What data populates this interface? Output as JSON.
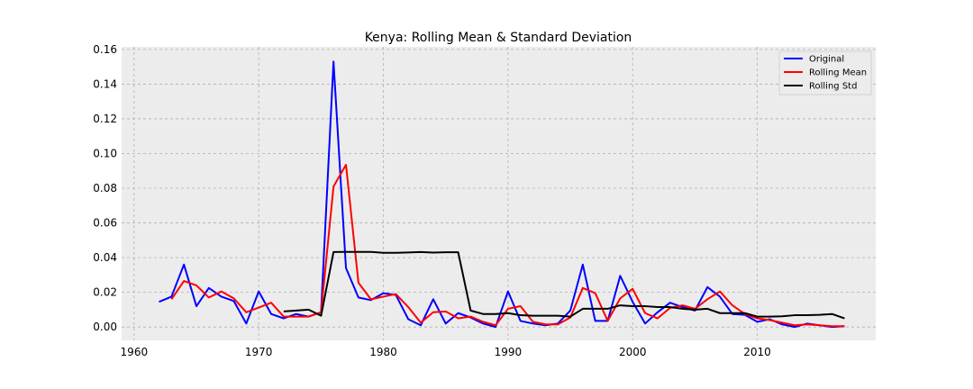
{
  "chart_data": {
    "type": "line",
    "title": "Kenya: Rolling Mean & Standard Deviation",
    "xlabel": "",
    "ylabel": "",
    "xlim": [
      1959,
      2019.5
    ],
    "ylim": [
      -0.0077,
      0.1615
    ],
    "xticks": [
      1960,
      1970,
      1980,
      1990,
      2000,
      2010
    ],
    "yticks": [
      0.0,
      0.02,
      0.04,
      0.06,
      0.08,
      0.1,
      0.12,
      0.14,
      0.16
    ],
    "ytick_labels": [
      "0.00",
      "0.02",
      "0.04",
      "0.06",
      "0.08",
      "0.10",
      "0.12",
      "0.14",
      "0.16"
    ],
    "grid": true,
    "legend_position": "top-right",
    "series": [
      {
        "name": "Original",
        "color": "#0000ff",
        "x": [
          1962,
          1963,
          1964,
          1965,
          1966,
          1967,
          1968,
          1969,
          1970,
          1971,
          1972,
          1973,
          1974,
          1975,
          1976,
          1977,
          1978,
          1979,
          1980,
          1981,
          1982,
          1983,
          1984,
          1985,
          1986,
          1987,
          1988,
          1989,
          1990,
          1991,
          1992,
          1993,
          1994,
          1995,
          1996,
          1997,
          1998,
          1999,
          2000,
          2001,
          2002,
          2003,
          2004,
          2005,
          2006,
          2007,
          2008,
          2009,
          2010,
          2011,
          2012,
          2013,
          2014,
          2015,
          2016,
          2017
        ],
        "values": [
          0.0145,
          0.0175,
          0.036,
          0.012,
          0.0225,
          0.0175,
          0.015,
          0.002,
          0.0205,
          0.0075,
          0.005,
          0.0075,
          0.006,
          0.0085,
          0.153,
          0.034,
          0.017,
          0.0155,
          0.0195,
          0.0185,
          0.0045,
          0.001,
          0.016,
          0.002,
          0.008,
          0.0055,
          0.002,
          0.0,
          0.0205,
          0.0035,
          0.002,
          0.001,
          0.002,
          0.0095,
          0.036,
          0.0035,
          0.0035,
          0.0295,
          0.0145,
          0.002,
          0.0085,
          0.014,
          0.0115,
          0.0095,
          0.023,
          0.0175,
          0.0075,
          0.007,
          0.003,
          0.0045,
          0.0015,
          0.0,
          0.002,
          0.001,
          0.0,
          0.0005
        ]
      },
      {
        "name": "Rolling Mean",
        "color": "#ff0000",
        "x": [
          1963,
          1964,
          1965,
          1966,
          1967,
          1968,
          1969,
          1970,
          1971,
          1972,
          1973,
          1974,
          1975,
          1976,
          1977,
          1978,
          1979,
          1980,
          1981,
          1982,
          1983,
          1984,
          1985,
          1986,
          1987,
          1988,
          1989,
          1990,
          1991,
          1992,
          1993,
          1994,
          1995,
          1996,
          1997,
          1998,
          1999,
          2000,
          2001,
          2002,
          2003,
          2004,
          2005,
          2006,
          2007,
          2008,
          2009,
          2010,
          2011,
          2012,
          2013,
          2014,
          2015,
          2016,
          2017
        ],
        "values": [
          0.016,
          0.0265,
          0.024,
          0.017,
          0.0205,
          0.0165,
          0.0085,
          0.0112,
          0.014,
          0.006,
          0.006,
          0.006,
          0.0085,
          0.081,
          0.0935,
          0.0255,
          0.016,
          0.0175,
          0.019,
          0.0115,
          0.0025,
          0.0085,
          0.009,
          0.005,
          0.006,
          0.003,
          0.001,
          0.0105,
          0.012,
          0.003,
          0.0015,
          0.0015,
          0.0055,
          0.0225,
          0.0195,
          0.0035,
          0.0165,
          0.022,
          0.008,
          0.005,
          0.011,
          0.0125,
          0.0105,
          0.016,
          0.0205,
          0.0125,
          0.0075,
          0.005,
          0.004,
          0.0025,
          0.001,
          0.0015,
          0.001,
          0.0005,
          0.0005
        ]
      },
      {
        "name": "Rolling Std",
        "color": "#000000",
        "x": [
          1972,
          1973,
          1974,
          1975,
          1976,
          1977,
          1978,
          1979,
          1980,
          1981,
          1982,
          1983,
          1984,
          1985,
          1986,
          1987,
          1988,
          1989,
          1990,
          1991,
          1992,
          1993,
          1994,
          1995,
          1996,
          1997,
          1998,
          1999,
          2000,
          2001,
          2002,
          2003,
          2004,
          2005,
          2006,
          2007,
          2008,
          2009,
          2010,
          2011,
          2012,
          2013,
          2014,
          2015,
          2016,
          2017
        ],
        "values": [
          0.009,
          0.0095,
          0.01,
          0.0065,
          0.0432,
          0.0433,
          0.0433,
          0.0433,
          0.0428,
          0.0428,
          0.043,
          0.0432,
          0.0429,
          0.0431,
          0.0431,
          0.0095,
          0.0075,
          0.0075,
          0.008,
          0.0068,
          0.0065,
          0.0065,
          0.0065,
          0.006,
          0.0105,
          0.0105,
          0.0105,
          0.0125,
          0.012,
          0.012,
          0.0115,
          0.0115,
          0.0105,
          0.01,
          0.0105,
          0.008,
          0.008,
          0.008,
          0.006,
          0.006,
          0.0062,
          0.0068,
          0.0068,
          0.007,
          0.0075,
          0.005
        ]
      }
    ]
  }
}
